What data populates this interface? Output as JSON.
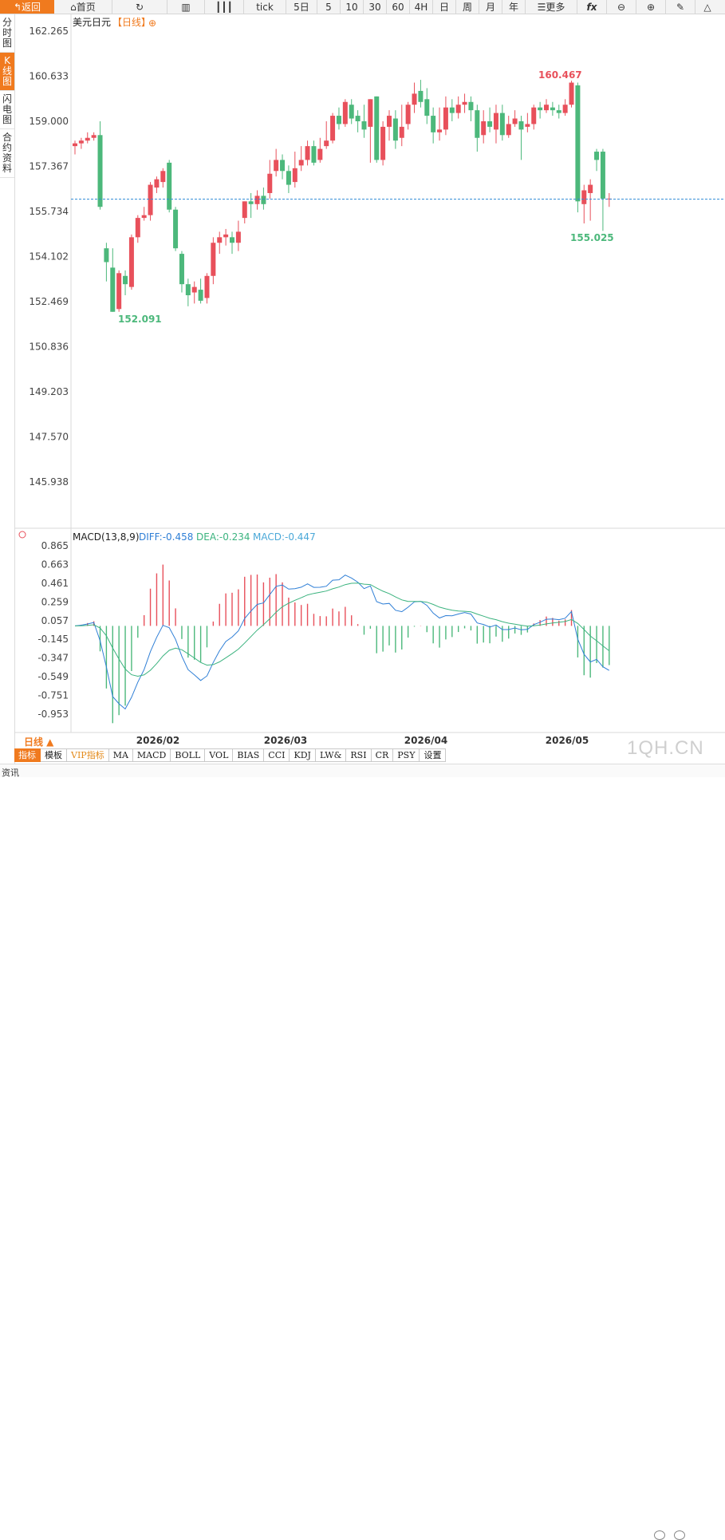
{
  "toolbar": {
    "back": "返回",
    "home": "首页",
    "tick": "tick",
    "five_day": "5日",
    "m5": "5",
    "m10": "10",
    "m30": "30",
    "m60": "60",
    "h4": "4H",
    "day": "日",
    "week": "周",
    "month": "月",
    "year": "年",
    "more": "更多"
  },
  "sidebar": [
    "分时图",
    "K线图",
    "闪电图",
    "合约资料"
  ],
  "chart": {
    "symbol": "美元日元",
    "period_tag": "【日线】",
    "plus": "⊕",
    "price_ticks": [
      "162.265",
      "160.633",
      "159.000",
      "157.367",
      "155.734",
      "154.102",
      "152.469",
      "150.836",
      "149.203",
      "147.570",
      "145.938"
    ],
    "high_label": "160.467",
    "low_label": "152.091",
    "last_low_label": "155.025",
    "current_price": 156.18
  },
  "macd": {
    "title": "MACD(13,8,9)",
    "diff": "DIFF:-0.458",
    "dea": "DEA:-0.234",
    "macd": "MACD:-0.447",
    "ticks": [
      "0.865",
      "0.663",
      "0.461",
      "0.259",
      "0.057",
      "-0.145",
      "-0.347",
      "-0.549",
      "-0.751",
      "-0.953"
    ]
  },
  "dates": [
    "2026/02",
    "2026/03",
    "2026/04",
    "2026/05"
  ],
  "period_label": "日线 ▲",
  "bottom_tabs": [
    "指标",
    "模板",
    "VIP指标",
    "MA",
    "MACD",
    "BOLL",
    "VOL",
    "BIAS",
    "CCI",
    "KDJ",
    "LW&",
    "RSI",
    "CR",
    "PSY",
    "设置"
  ],
  "status_tab": "资讯",
  "watermark": "1QH.CN",
  "colors": {
    "up": "#e8505b",
    "down": "#4cb87b",
    "accent": "#f07a1e",
    "diff": "#2f7fd6",
    "dea": "#3bb37f"
  },
  "chart_data": {
    "type": "candlestick",
    "candles": [
      [
        158.1,
        158.2,
        157.8,
        158.3
      ],
      [
        158.2,
        158.3,
        158.0,
        158.4
      ],
      [
        158.3,
        158.4,
        158.2,
        158.6
      ],
      [
        158.4,
        158.5,
        158.3,
        158.6
      ],
      [
        158.5,
        155.9,
        155.8,
        159.0
      ],
      [
        154.4,
        153.9,
        153.2,
        154.6
      ],
      [
        153.7,
        152.1,
        152.1,
        154.4
      ],
      [
        152.2,
        153.5,
        152.1,
        153.6
      ],
      [
        153.4,
        153.1,
        152.7,
        153.6
      ],
      [
        153.0,
        154.8,
        152.9,
        154.9
      ],
      [
        154.8,
        155.5,
        154.6,
        155.6
      ],
      [
        155.5,
        155.6,
        155.4,
        155.9
      ],
      [
        155.6,
        156.7,
        155.4,
        156.8
      ],
      [
        156.6,
        156.9,
        156.4,
        157.0
      ],
      [
        156.8,
        157.2,
        156.6,
        157.3
      ],
      [
        157.5,
        155.8,
        155.7,
        157.6
      ],
      [
        155.8,
        154.4,
        154.3,
        155.9
      ],
      [
        154.2,
        153.1,
        152.8,
        154.3
      ],
      [
        153.1,
        152.7,
        152.3,
        153.3
      ],
      [
        152.8,
        153.0,
        152.4,
        153.2
      ],
      [
        152.9,
        152.5,
        152.4,
        153.3
      ],
      [
        152.6,
        153.4,
        152.4,
        153.5
      ],
      [
        153.4,
        154.6,
        153.1,
        154.8
      ],
      [
        154.6,
        154.8,
        154.2,
        155.0
      ],
      [
        154.8,
        154.9,
        154.5,
        155.1
      ],
      [
        154.8,
        154.6,
        154.2,
        155.0
      ],
      [
        154.6,
        155.0,
        154.3,
        155.4
      ],
      [
        155.5,
        156.1,
        155.3,
        156.1
      ],
      [
        156.1,
        156.0,
        155.5,
        156.4
      ],
      [
        156.0,
        156.3,
        155.8,
        156.5
      ],
      [
        156.3,
        156.0,
        155.8,
        156.6
      ],
      [
        156.4,
        157.1,
        156.2,
        157.6
      ],
      [
        157.2,
        157.6,
        157.0,
        158.0
      ],
      [
        157.6,
        157.2,
        156.9,
        157.8
      ],
      [
        157.2,
        156.7,
        156.4,
        157.4
      ],
      [
        156.8,
        157.3,
        156.6,
        157.9
      ],
      [
        157.4,
        157.6,
        157.2,
        158.1
      ],
      [
        157.6,
        158.1,
        157.4,
        158.3
      ],
      [
        158.1,
        157.5,
        157.4,
        158.3
      ],
      [
        157.6,
        158.0,
        157.5,
        158.4
      ],
      [
        158.1,
        158.3,
        158.0,
        159.0
      ],
      [
        158.3,
        159.2,
        158.2,
        159.3
      ],
      [
        159.2,
        158.9,
        158.7,
        159.5
      ],
      [
        158.9,
        159.7,
        158.8,
        159.8
      ],
      [
        159.6,
        159.1,
        158.9,
        159.8
      ],
      [
        159.2,
        159.0,
        158.6,
        159.4
      ],
      [
        159.0,
        158.7,
        158.4,
        159.6
      ],
      [
        158.8,
        159.8,
        157.5,
        159.8
      ],
      [
        159.9,
        157.6,
        157.5,
        159.9
      ],
      [
        157.6,
        158.8,
        157.4,
        159.0
      ],
      [
        158.8,
        159.2,
        158.3,
        159.4
      ],
      [
        159.1,
        158.3,
        158.0,
        159.4
      ],
      [
        158.4,
        158.8,
        158.1,
        159.6
      ],
      [
        158.9,
        159.6,
        158.7,
        159.7
      ],
      [
        159.6,
        160.0,
        159.3,
        160.4
      ],
      [
        160.1,
        159.7,
        159.5,
        160.5
      ],
      [
        159.8,
        159.2,
        158.9,
        160.2
      ],
      [
        159.2,
        158.6,
        158.2,
        159.5
      ],
      [
        158.6,
        158.7,
        158.3,
        159.5
      ],
      [
        158.7,
        159.5,
        158.5,
        159.9
      ],
      [
        159.5,
        159.3,
        159.0,
        159.8
      ],
      [
        159.3,
        159.6,
        159.1,
        159.9
      ],
      [
        159.6,
        159.7,
        159.3,
        160.0
      ],
      [
        159.7,
        159.4,
        159.0,
        159.9
      ],
      [
        159.4,
        158.4,
        157.9,
        159.6
      ],
      [
        158.5,
        159.0,
        158.2,
        159.4
      ],
      [
        159.0,
        158.8,
        158.6,
        159.5
      ],
      [
        158.7,
        159.3,
        158.2,
        159.6
      ],
      [
        159.3,
        158.5,
        158.3,
        159.6
      ],
      [
        158.5,
        158.9,
        158.4,
        159.2
      ],
      [
        158.9,
        159.1,
        158.8,
        159.4
      ],
      [
        159.0,
        158.7,
        157.6,
        159.2
      ],
      [
        158.8,
        158.9,
        158.6,
        159.3
      ],
      [
        158.9,
        159.5,
        158.7,
        159.6
      ],
      [
        159.5,
        159.4,
        159.1,
        159.7
      ],
      [
        159.4,
        159.6,
        159.3,
        159.8
      ],
      [
        159.5,
        159.4,
        159.2,
        159.7
      ],
      [
        159.4,
        159.3,
        159.1,
        159.6
      ],
      [
        159.3,
        159.6,
        159.2,
        159.8
      ],
      [
        159.6,
        160.4,
        159.5,
        160.47
      ],
      [
        160.3,
        156.1,
        155.7,
        160.4
      ],
      [
        156.0,
        156.5,
        155.3,
        156.7
      ],
      [
        156.4,
        156.7,
        155.4,
        156.9
      ],
      [
        157.9,
        157.6,
        157.2,
        158.0
      ],
      [
        157.9,
        156.2,
        155.03,
        158.0
      ],
      [
        156.2,
        156.2,
        155.9,
        156.4
      ]
    ]
  }
}
